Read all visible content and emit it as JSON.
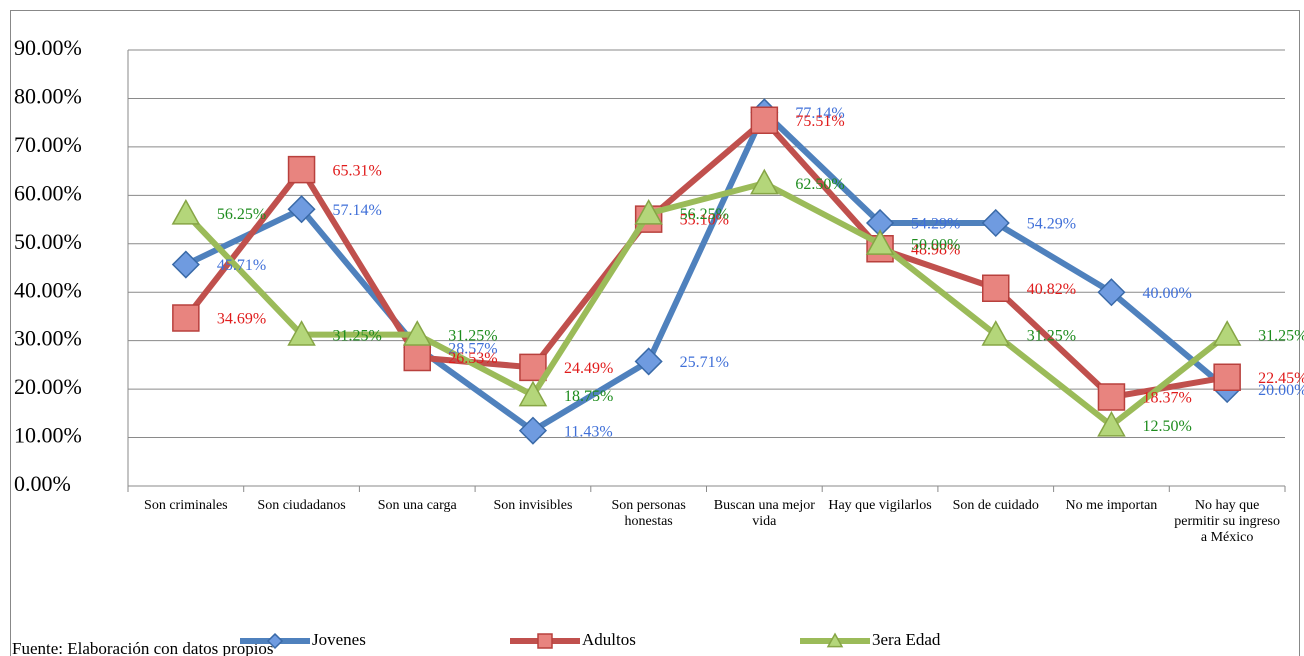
{
  "chart_data": {
    "type": "line",
    "categories": [
      "Son criminales",
      "Son ciudadanos",
      "Son una carga",
      "Son invisibles",
      "Son personas honestas",
      "Buscan una mejor vida",
      "Hay que vigilarlos",
      "Son de cuidado",
      "No me importan",
      "No hay que permitir su ingreso a México"
    ],
    "series": [
      {
        "name": "Jovenes",
        "color": "#4f81bd",
        "label_color": "#3f6fd8",
        "marker": "diamond",
        "values": [
          45.71,
          57.14,
          28.57,
          11.43,
          25.71,
          77.14,
          54.29,
          54.29,
          40.0,
          20.0
        ],
        "value_labels": [
          "45.71%",
          "57.14%",
          "28.57%",
          "11.43%",
          "25.71%",
          "77.14%",
          "54.29%",
          "54.29%",
          "40.00%",
          "20.00%"
        ]
      },
      {
        "name": "Adultos",
        "color": "#c0504d",
        "label_color": "#e01b1b",
        "marker": "square",
        "values": [
          34.69,
          65.31,
          26.53,
          24.49,
          55.1,
          75.51,
          48.98,
          40.82,
          18.37,
          22.45
        ],
        "value_labels": [
          "34.69%",
          "65.31%",
          "26.53%",
          "24.49%",
          "55.10%",
          "75.51%",
          "48.98%",
          "40.82%",
          "18.37%",
          "22.45%"
        ]
      },
      {
        "name": "3era Edad",
        "color": "#9bbb59",
        "label_color": "#1e8c1e",
        "marker": "triangle",
        "values": [
          56.25,
          31.25,
          31.25,
          18.75,
          56.25,
          62.5,
          50.0,
          31.25,
          12.5,
          31.25
        ],
        "value_labels": [
          "56.25%",
          "31.25%",
          "31.25%",
          "18.75%",
          "56.25%",
          "62.50%",
          "50.00%",
          "31.25%",
          "12.50%",
          "31.25%"
        ]
      }
    ],
    "ylim": [
      0,
      90
    ],
    "yticks": [
      {
        "value": 0,
        "label": "0.00%"
      },
      {
        "value": 10,
        "label": "10.00%"
      },
      {
        "value": 20,
        "label": "20.00%"
      },
      {
        "value": 30,
        "label": "30.00%"
      },
      {
        "value": 40,
        "label": "40.00%"
      },
      {
        "value": 50,
        "label": "50.00%"
      },
      {
        "value": 60,
        "label": "60.00%"
      },
      {
        "value": 70,
        "label": "70.00%"
      },
      {
        "value": 80,
        "label": "80.00%"
      },
      {
        "value": 90,
        "label": "90.00%"
      }
    ],
    "grid": true,
    "legend": "bottom",
    "source": "Fuente: Elaboración con datos propios"
  }
}
